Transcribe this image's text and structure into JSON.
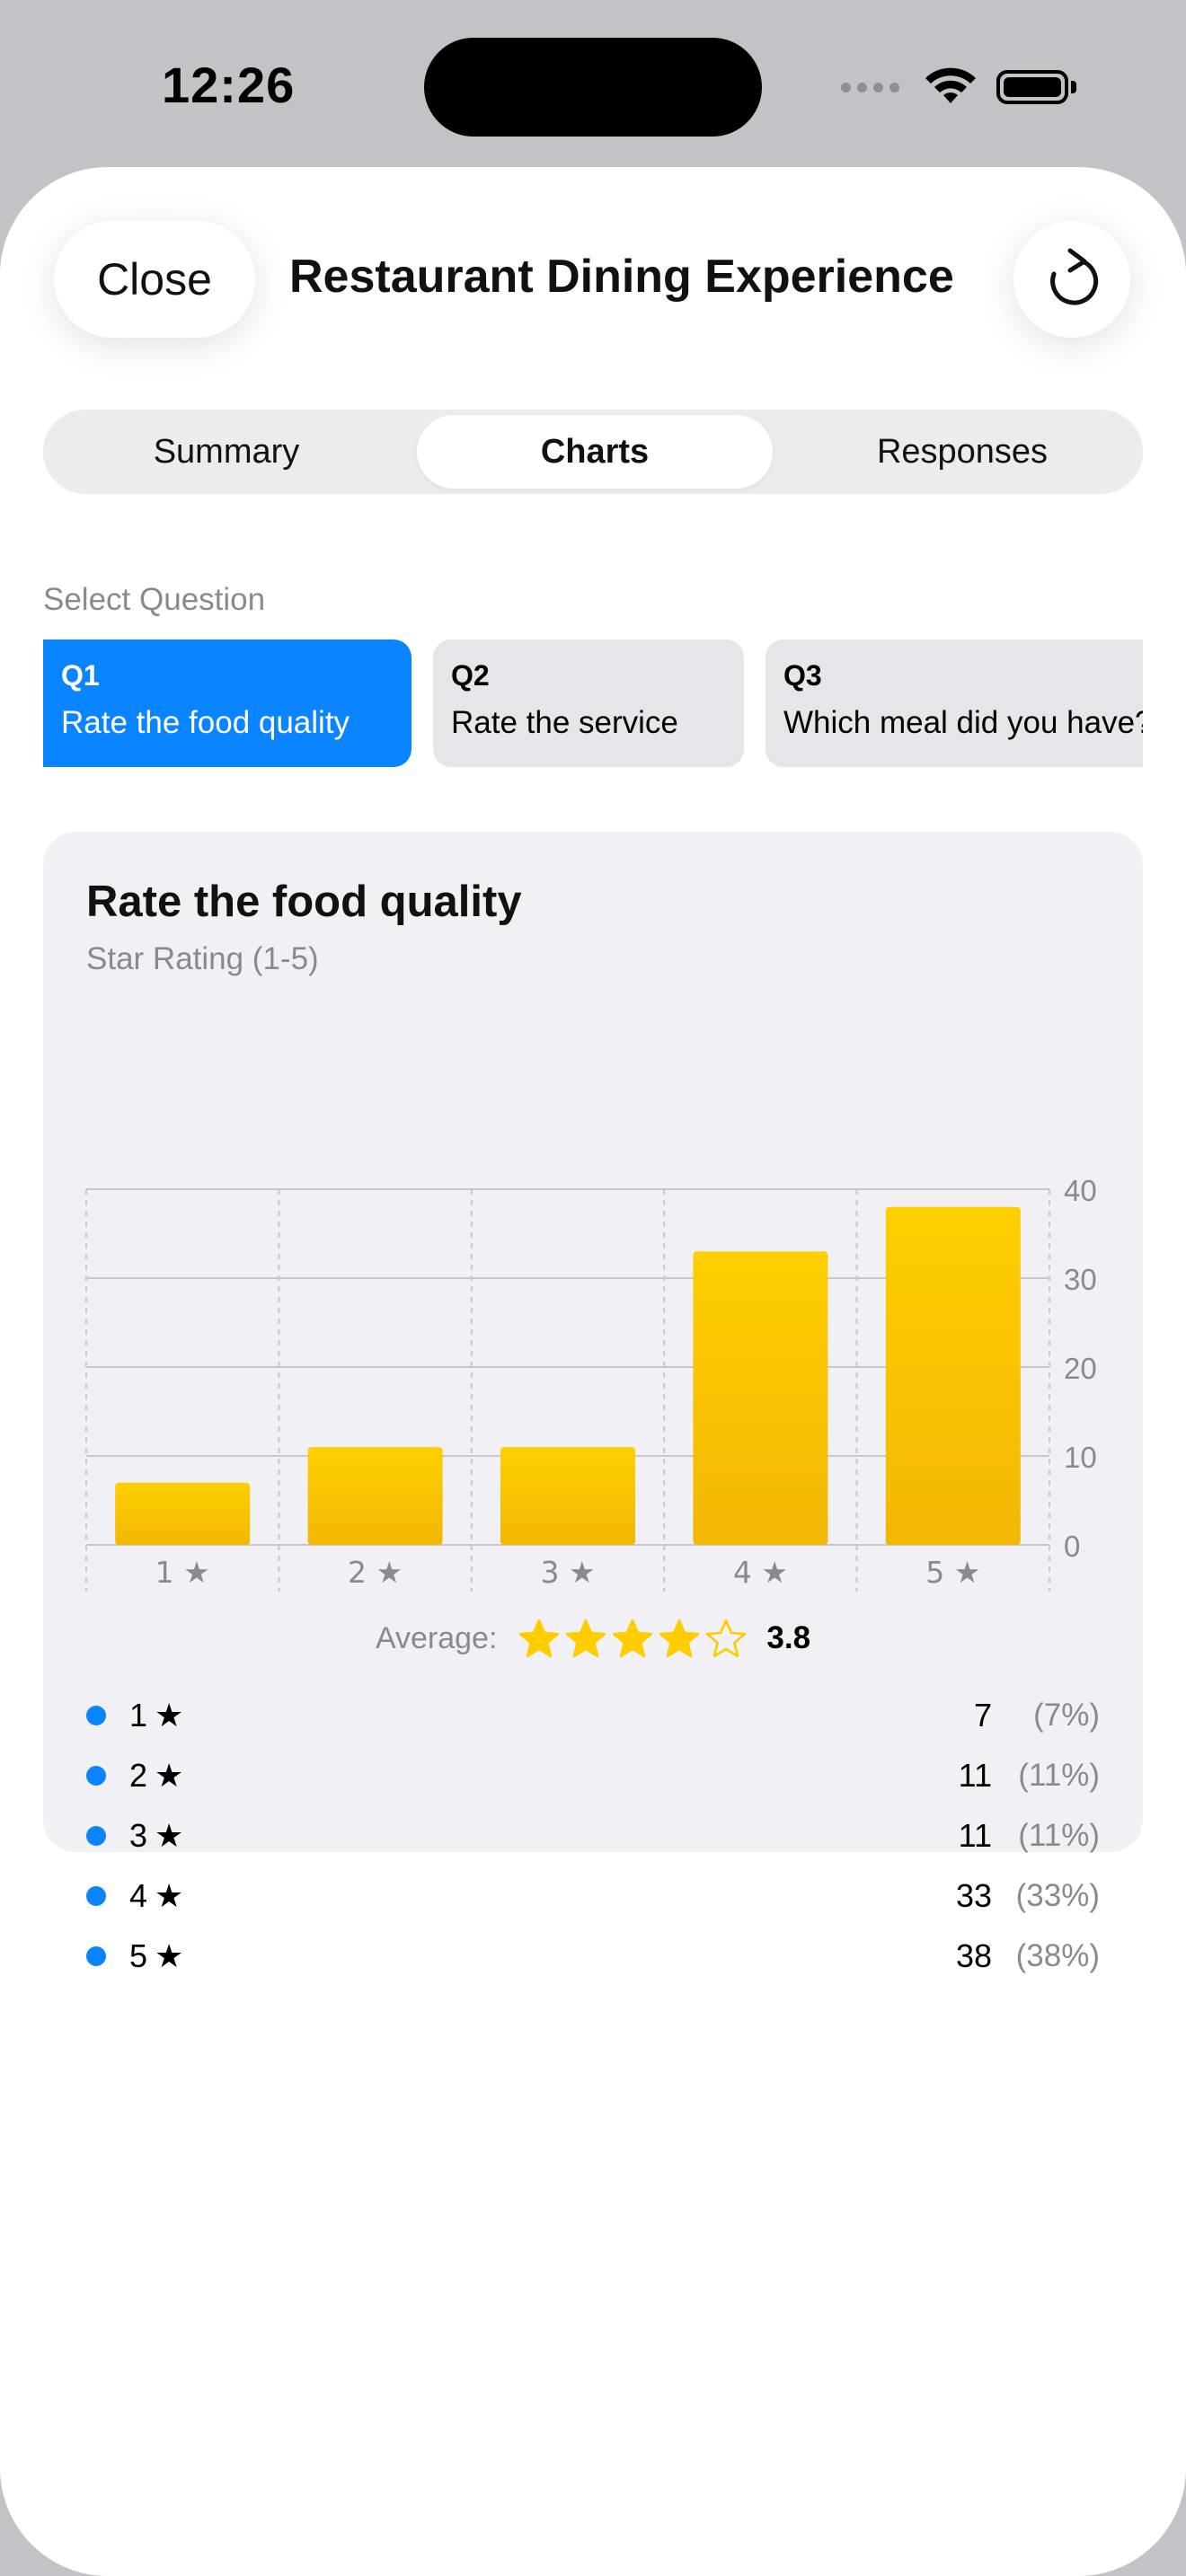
{
  "status_bar": {
    "time": "12:26"
  },
  "header": {
    "close_label": "Close",
    "title": "Restaurant Dining Experience"
  },
  "tabs": [
    {
      "label": "Summary",
      "active": false
    },
    {
      "label": "Charts",
      "active": true
    },
    {
      "label": "Responses",
      "active": false
    }
  ],
  "question_selector": {
    "label": "Select Question",
    "chips": [
      {
        "num": "Q1",
        "text": "Rate the food quality",
        "active": true
      },
      {
        "num": "Q2",
        "text": "Rate the service",
        "active": false
      },
      {
        "num": "Q3",
        "text": "Which meal did you have?",
        "active": false
      }
    ]
  },
  "card": {
    "title": "Rate the food quality",
    "subtitle": "Star Rating (1-5)"
  },
  "chart_data": {
    "type": "bar",
    "categories": [
      "1 ★",
      "2 ★",
      "3 ★",
      "4 ★",
      "5 ★"
    ],
    "values": [
      7,
      11,
      11,
      33,
      38
    ],
    "ylim": [
      0,
      40
    ],
    "yticks": [
      0,
      10,
      20,
      30,
      40
    ],
    "y_axis_side": "right",
    "grid": true,
    "bar_color": "#ffcc00"
  },
  "average": {
    "label": "Average:",
    "value": "3.8",
    "rating": 3.8,
    "max": 5
  },
  "legend": [
    {
      "label": "1",
      "count": "7",
      "pct": "(7%)"
    },
    {
      "label": "2",
      "count": "11",
      "pct": "(11%)"
    },
    {
      "label": "3",
      "count": "11",
      "pct": "(11%)"
    },
    {
      "label": "4",
      "count": "33",
      "pct": "(33%)"
    },
    {
      "label": "5",
      "count": "38",
      "pct": "(38%)"
    }
  ],
  "colors": {
    "accent": "#0a84ff",
    "star": "#ffcc00",
    "secondary_text": "#8a8a8e"
  },
  "icons": {
    "refresh": "arrow-clockwise-icon",
    "wifi": "wifi-icon",
    "battery": "battery-icon",
    "star": "star-icon"
  }
}
